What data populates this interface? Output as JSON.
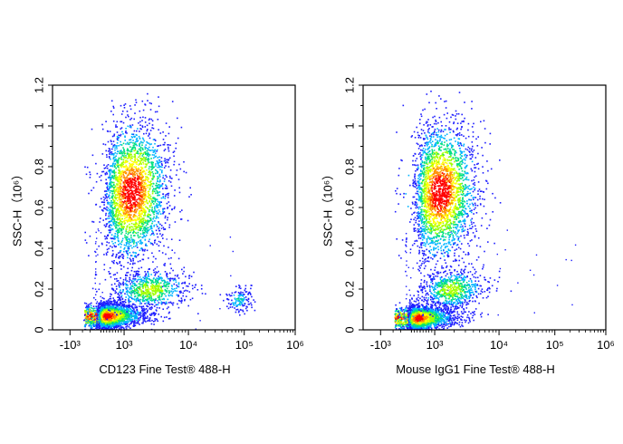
{
  "chart_data": [
    {
      "type": "scatter",
      "style": "flow-cytometry density dot plot (pseudocolor)",
      "xlabel": "CD123 Fine Test® 488-H",
      "ylabel": "SSC-H（10⁶）",
      "x_scale": "biexponential",
      "y_scale": "linear",
      "xlim": [
        -1000,
        1000000
      ],
      "ylim": [
        0,
        1.2
      ],
      "x_ticks": [
        {
          "value": -1000,
          "label": "-10³"
        },
        {
          "value": 1000,
          "label": "10³"
        },
        {
          "value": 10000,
          "label": "10⁴"
        },
        {
          "value": 100000,
          "label": "10⁵"
        },
        {
          "value": 1000000,
          "label": "10⁶"
        }
      ],
      "y_ticks": [
        {
          "value": 0,
          "label": "0"
        },
        {
          "value": 0.2,
          "label": "0.2"
        },
        {
          "value": 0.4,
          "label": "0.4"
        },
        {
          "value": 0.6,
          "label": "0.6"
        },
        {
          "value": 0.8,
          "label": "0.8"
        },
        {
          "value": 1.0,
          "label": "1"
        },
        {
          "value": 1.2,
          "label": "1.2"
        }
      ],
      "populations": [
        {
          "x_center": 400,
          "y_center": 0.07,
          "x_spread_decades": 0.35,
          "y_spread": 0.03,
          "density": "high"
        },
        {
          "x_center": 1300,
          "y_center": 0.68,
          "x_spread_decades": 0.28,
          "y_spread": 0.17,
          "density": "high"
        },
        {
          "x_center": 2500,
          "y_center": 0.2,
          "x_spread_decades": 0.3,
          "y_spread": 0.05,
          "density": "medium"
        },
        {
          "x_center": 80000,
          "y_center": 0.15,
          "x_spread_decades": 0.12,
          "y_spread": 0.03,
          "density": "low"
        }
      ]
    },
    {
      "type": "scatter",
      "style": "flow-cytometry density dot plot (pseudocolor)",
      "xlabel": "Mouse IgG1 Fine Test® 488-H",
      "ylabel": "SSC-H（10⁶）",
      "x_scale": "biexponential",
      "y_scale": "linear",
      "xlim": [
        -1000,
        1000000
      ],
      "ylim": [
        0,
        1.2
      ],
      "x_ticks": [
        {
          "value": -1000,
          "label": "-10³"
        },
        {
          "value": 1000,
          "label": "10³"
        },
        {
          "value": 10000,
          "label": "10⁴"
        },
        {
          "value": 100000,
          "label": "10⁵"
        },
        {
          "value": 1000000,
          "label": "10⁶"
        }
      ],
      "y_ticks": [
        {
          "value": 0,
          "label": "0"
        },
        {
          "value": 0.2,
          "label": "0.2"
        },
        {
          "value": 0.4,
          "label": "0.4"
        },
        {
          "value": 0.6,
          "label": "0.6"
        },
        {
          "value": 0.8,
          "label": "0.8"
        },
        {
          "value": 1.0,
          "label": "1"
        },
        {
          "value": 1.2,
          "label": "1.2"
        }
      ],
      "populations": [
        {
          "x_center": 400,
          "y_center": 0.06,
          "x_spread_decades": 0.35,
          "y_spread": 0.03,
          "density": "high"
        },
        {
          "x_center": 1200,
          "y_center": 0.68,
          "x_spread_decades": 0.28,
          "y_spread": 0.17,
          "density": "high"
        },
        {
          "x_center": 1800,
          "y_center": 0.2,
          "x_spread_decades": 0.25,
          "y_spread": 0.05,
          "density": "medium"
        }
      ]
    }
  ],
  "colors": {
    "density_scale": [
      "#1e1eff",
      "#00b4ff",
      "#00e080",
      "#a0ff00",
      "#ffff00",
      "#ff9000",
      "#ff0000"
    ],
    "axis": "#000000",
    "background": "#ffffff"
  }
}
